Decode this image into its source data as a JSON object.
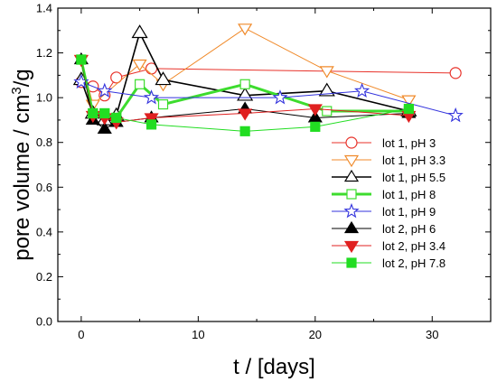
{
  "chart_data": {
    "type": "line",
    "xlabel": "t / [days]",
    "ylabel_parts": [
      "pore volume / cm",
      "3",
      "/g"
    ],
    "xlim": [
      -2,
      35
    ],
    "ylim": [
      0,
      1.4
    ],
    "xticks": [
      0,
      10,
      20,
      30
    ],
    "xtick_labels": [
      "0",
      "10",
      "20",
      "30"
    ],
    "yticks": [
      0.0,
      0.2,
      0.4,
      0.6,
      0.8,
      1.0,
      1.2,
      1.4
    ],
    "ytick_labels": [
      "0.0",
      "0.2",
      "0.4",
      "0.6",
      "0.8",
      "1.0",
      "1.2",
      "1.4"
    ],
    "grid": false,
    "legend_position": "center-right",
    "series": [
      {
        "name": "lot 1, pH 3",
        "color": "#e8322a",
        "marker": "circle-open",
        "line_width": 1,
        "x": [
          0,
          1,
          2,
          3,
          6,
          32
        ],
        "y": [
          1.07,
          1.05,
          1.01,
          1.09,
          1.13,
          1.11
        ]
      },
      {
        "name": "lot 1, pH 3.3",
        "color": "#f08a2a",
        "marker": "triangle-down-open",
        "line_width": 1,
        "x": [
          0,
          1,
          5,
          7,
          14,
          21,
          28
        ],
        "y": [
          1.17,
          0.97,
          1.15,
          1.06,
          1.31,
          1.12,
          0.99
        ]
      },
      {
        "name": "lot 1, pH 5.5",
        "color": "#000000",
        "marker": "triangle-up-open",
        "line_width": 1.6,
        "x": [
          0,
          1,
          2,
          3,
          5,
          7,
          14,
          21,
          28
        ],
        "y": [
          1.08,
          0.93,
          0.9,
          0.92,
          1.29,
          1.08,
          1.01,
          1.03,
          0.94
        ]
      },
      {
        "name": "lot 1, pH 8",
        "color": "#3ddc2e",
        "marker": "square-open",
        "line_width": 3,
        "x": [
          0,
          1,
          2,
          3,
          5,
          7,
          14,
          21,
          28
        ],
        "y": [
          1.17,
          0.93,
          0.93,
          0.91,
          1.06,
          0.97,
          1.06,
          0.94,
          0.94
        ]
      },
      {
        "name": "lot 1, pH 9",
        "color": "#3333dd",
        "marker": "star-open",
        "line_width": 1,
        "x": [
          0,
          2,
          6,
          17,
          24,
          32
        ],
        "y": [
          1.07,
          1.03,
          1.0,
          1.0,
          1.03,
          0.92
        ]
      },
      {
        "name": "lot 2, pH 6",
        "color": "#000000",
        "marker": "triangle-up-filled",
        "line_width": 1,
        "x": [
          0,
          1,
          2,
          3,
          6,
          14,
          20,
          28
        ],
        "y": [
          1.17,
          0.9,
          0.86,
          0.89,
          0.91,
          0.95,
          0.91,
          0.93
        ]
      },
      {
        "name": "lot 2, pH 3.4",
        "color": "#e02020",
        "marker": "triangle-down-filled",
        "line_width": 1,
        "x": [
          0,
          1,
          2,
          3,
          6,
          14,
          20,
          28
        ],
        "y": [
          1.17,
          0.92,
          0.91,
          0.89,
          0.91,
          0.93,
          0.95,
          0.92
        ]
      },
      {
        "name": "lot 2, pH 7.8",
        "color": "#22dd22",
        "marker": "square-filled",
        "line_width": 1,
        "x": [
          0,
          1,
          2,
          3,
          6,
          14,
          20,
          28
        ],
        "y": [
          1.17,
          0.93,
          0.93,
          0.91,
          0.88,
          0.85,
          0.87,
          0.95
        ]
      }
    ]
  }
}
